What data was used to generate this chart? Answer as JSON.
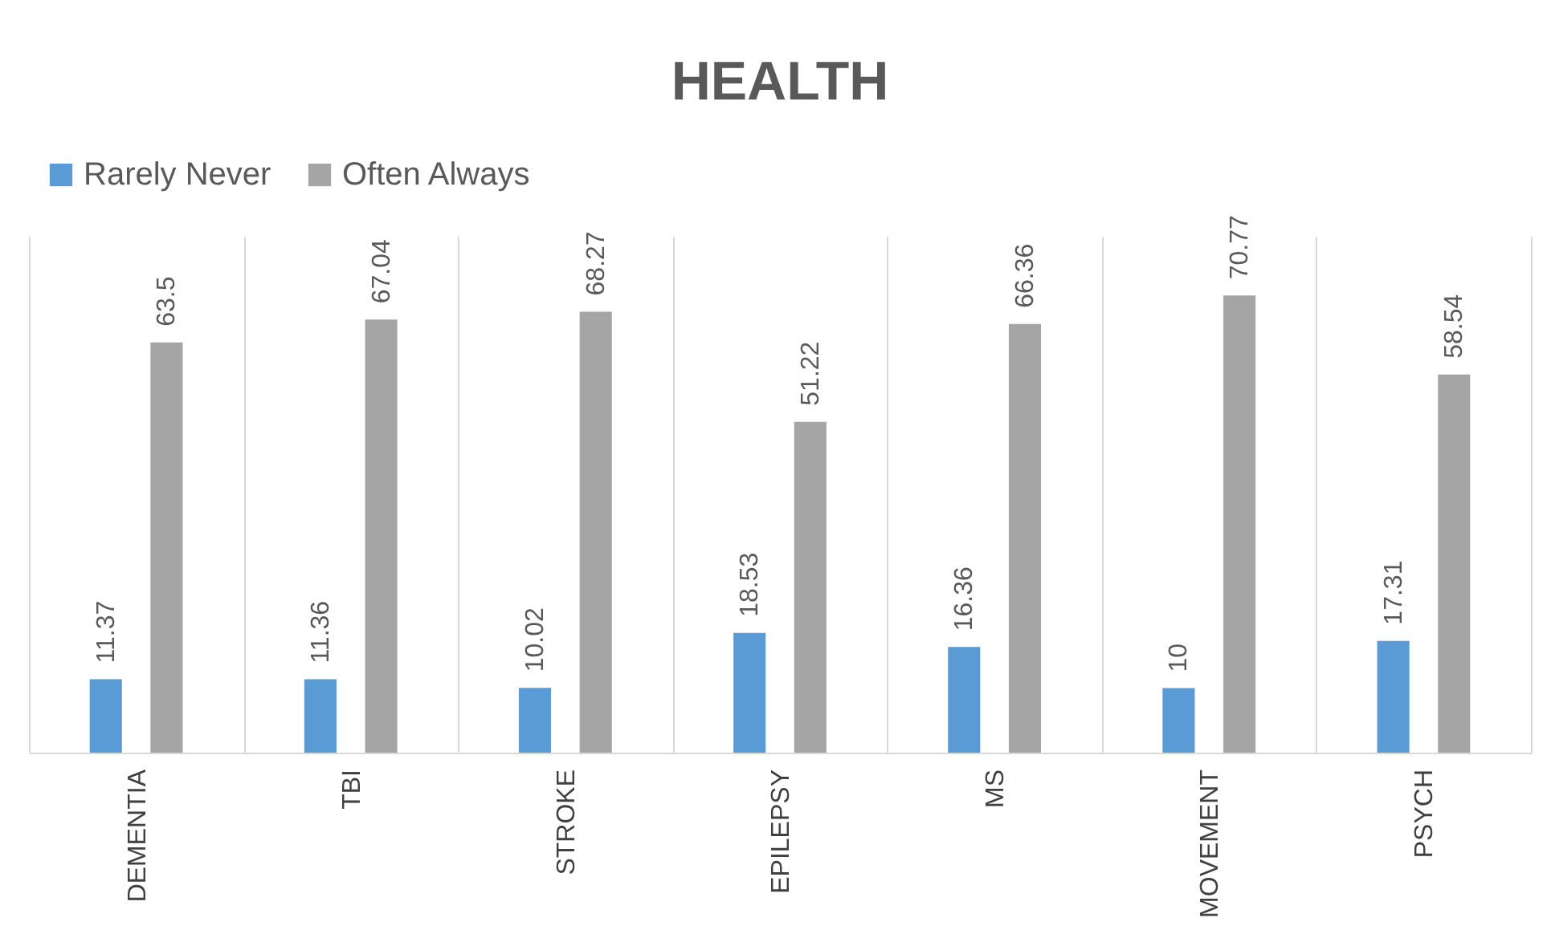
{
  "chart_data": {
    "type": "bar",
    "title": "HEALTH",
    "categories": [
      "DEMENTIA",
      "TBI",
      "STROKE",
      "EPILEPSY",
      "MS",
      "MOVEMENT",
      "PSYCH"
    ],
    "series": [
      {
        "name": "Rarely Never",
        "color": "#5b9bd5",
        "values": [
          11.37,
          11.36,
          10.02,
          18.53,
          16.36,
          10,
          17.31
        ]
      },
      {
        "name": "Often Always",
        "color": "#a5a5a5",
        "values": [
          63.5,
          67.04,
          68.27,
          51.22,
          66.36,
          70.77,
          58.54
        ]
      }
    ],
    "data_labels": true,
    "grid": "x",
    "legend": "top",
    "tick_labels": "x"
  }
}
